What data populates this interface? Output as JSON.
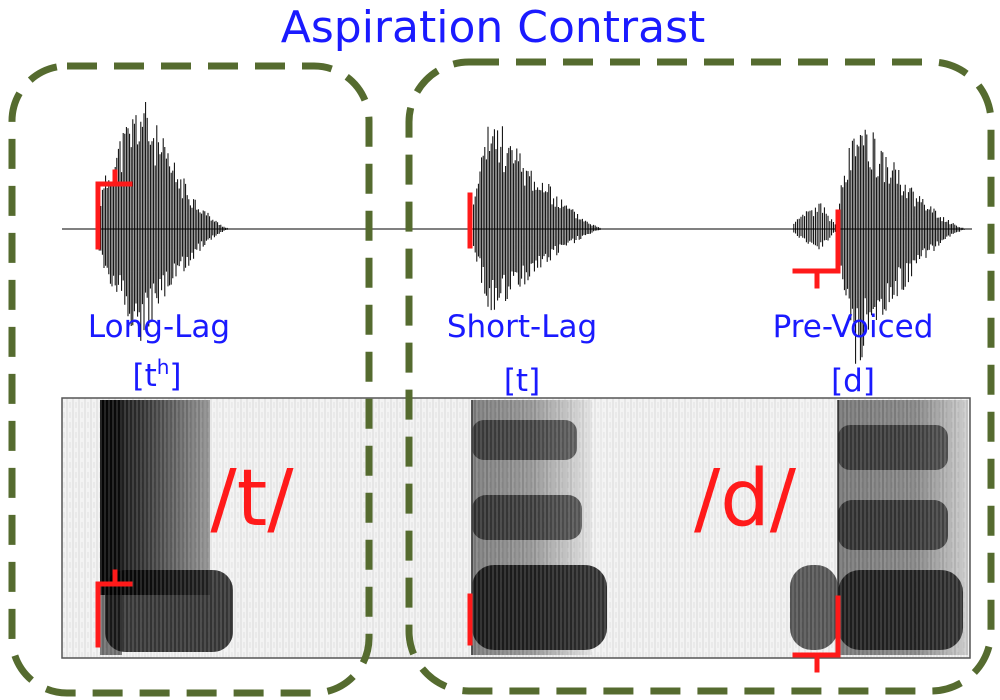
{
  "title": "Aspiration Contrast",
  "groups": [
    {
      "phoneme": "/t/",
      "categories": [
        {
          "name": "Long-Lag",
          "ipa_base": "[t",
          "ipa_sup": "h",
          "ipa_close": "]"
        }
      ]
    },
    {
      "phoneme": "/d/",
      "categories": [
        {
          "name": "Short-Lag",
          "ipa": "[t]"
        },
        {
          "name": "Pre-Voiced",
          "ipa": "[d]"
        }
      ]
    }
  ],
  "colors": {
    "title": "#1a1aff",
    "labels": "#1a1aff",
    "phoneme": "#ff1a1a",
    "markers": "#ff1a1a",
    "box_outline": "#556b2f",
    "waveform": "#000000"
  }
}
